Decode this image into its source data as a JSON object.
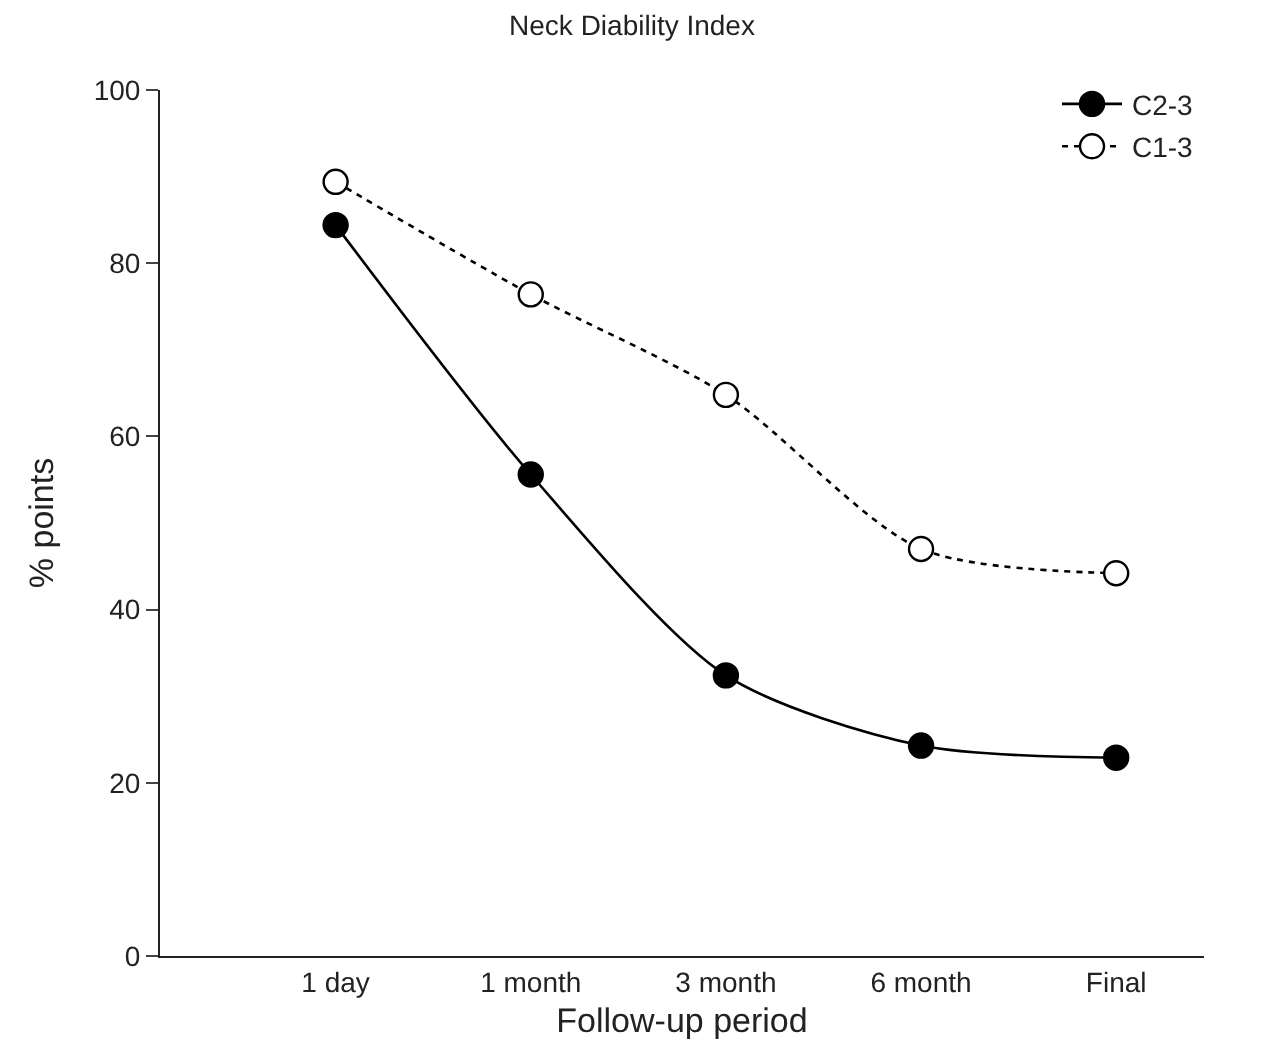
{
  "chart_data": {
    "type": "line",
    "title": "Neck Diability Index",
    "xlabel": "Follow-up period",
    "ylabel": "% points",
    "categories": [
      "1 day",
      "1 month",
      "3 month",
      "6 month",
      "Final"
    ],
    "ylim": [
      0,
      100
    ],
    "yticks": [
      0,
      20,
      40,
      60,
      80,
      100
    ],
    "legend": "top right",
    "series": [
      {
        "name": "C2-3",
        "color": "#000000",
        "marker": "circle",
        "line_style": "solid",
        "values": [
          84.4,
          55.6,
          32.4,
          24.3,
          22.9
        ]
      },
      {
        "name": "C1-3",
        "color": "#000000",
        "marker": "circle-open",
        "line_style": "dotted",
        "values": [
          89.4,
          76.4,
          64.8,
          47.0,
          44.2
        ]
      }
    ]
  }
}
